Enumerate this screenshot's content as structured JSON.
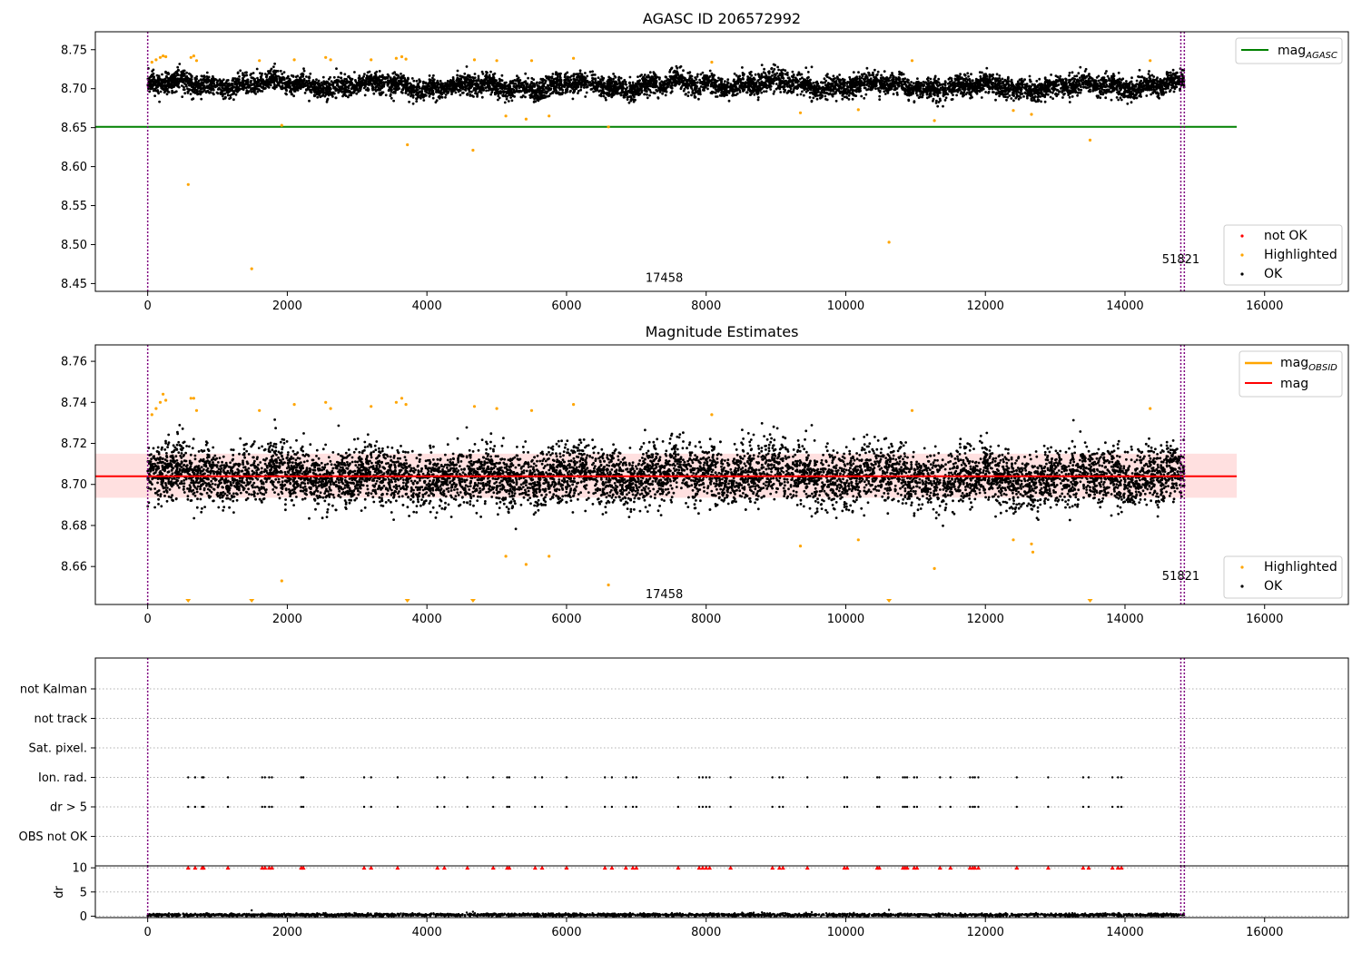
{
  "colors": {
    "ok": "#000000",
    "highlighted": "#ffa500",
    "not_ok": "#ff0000",
    "mag_agasc_line": "#008000",
    "mag_line": "#ff0000",
    "mag_band": "#ffcccc",
    "obsid_marker": "#800080",
    "grid": "#b0b0b0"
  },
  "chart_data": [
    {
      "type": "scatter",
      "title": "AGASC ID 206572992",
      "xlabel": "",
      "ylabel": "",
      "xlim": [
        -750,
        17200
      ],
      "ylim": [
        8.44,
        8.773
      ],
      "xticks": [
        0,
        2000,
        4000,
        6000,
        8000,
        10000,
        12000,
        14000,
        16000
      ],
      "xtick_labels": [
        "0",
        "2000",
        "4000",
        "6000",
        "8000",
        "10000",
        "12000",
        "14000",
        "16000"
      ],
      "yticks": [
        8.45,
        8.5,
        8.55,
        8.6,
        8.65,
        8.7,
        8.75
      ],
      "ytick_labels": [
        "8.45",
        "8.50",
        "8.55",
        "8.60",
        "8.65",
        "8.70",
        "8.75"
      ],
      "legend_position": "top-right and bottom-right",
      "legend_top": [
        {
          "label": "mag",
          "sub": "AGASC",
          "kind": "line",
          "color": "#008000"
        }
      ],
      "legend_bottom": [
        {
          "label": "not OK",
          "kind": "dot",
          "color": "#ff0000"
        },
        {
          "label": "Highlighted",
          "kind": "dot",
          "color": "#ffa500"
        },
        {
          "label": "OK",
          "kind": "dot",
          "color": "#000000"
        }
      ],
      "hline": {
        "name": "mag_AGASC",
        "y": 8.651,
        "x_range": [
          -750,
          15600
        ]
      },
      "obsid_markers": [
        0,
        14800,
        14850
      ],
      "annotations": [
        {
          "text": "17458",
          "x": 7400,
          "y": 8.452
        },
        {
          "text": "51821",
          "x": 14800,
          "y": 8.476
        }
      ],
      "ok_series": {
        "x_range": [
          0,
          14850
        ],
        "center": 8.704,
        "spread": 0.012,
        "n_points": 7000
      },
      "highlighted_outliers": [
        [
          580,
          8.577
        ],
        [
          1490,
          8.469
        ],
        [
          3720,
          8.628
        ],
        [
          4660,
          8.621
        ],
        [
          10620,
          8.503
        ],
        [
          13500,
          8.634
        ],
        [
          1920,
          8.653
        ],
        [
          5130,
          8.665
        ],
        [
          5420,
          8.661
        ],
        [
          5750,
          8.665
        ],
        [
          6600,
          8.651
        ],
        [
          9350,
          8.669
        ],
        [
          10180,
          8.673
        ],
        [
          11270,
          8.659
        ],
        [
          12400,
          8.672
        ],
        [
          12660,
          8.667
        ]
      ],
      "highlighted_high": [
        [
          60,
          8.734
        ],
        [
          120,
          8.737
        ],
        [
          180,
          8.74
        ],
        [
          220,
          8.742
        ],
        [
          260,
          8.741
        ],
        [
          620,
          8.74
        ],
        [
          660,
          8.742
        ],
        [
          700,
          8.736
        ],
        [
          1600,
          8.736
        ],
        [
          2100,
          8.737
        ],
        [
          2550,
          8.74
        ],
        [
          2620,
          8.737
        ],
        [
          3200,
          8.737
        ],
        [
          3560,
          8.739
        ],
        [
          3640,
          8.741
        ],
        [
          3700,
          8.738
        ],
        [
          4680,
          8.737
        ],
        [
          5000,
          8.736
        ],
        [
          5500,
          8.736
        ],
        [
          6100,
          8.739
        ],
        [
          8080,
          8.734
        ],
        [
          10950,
          8.736
        ],
        [
          14360,
          8.736
        ]
      ]
    },
    {
      "type": "scatter",
      "title": "Magnitude Estimates",
      "xlabel": "",
      "ylabel": "",
      "xlim": [
        -750,
        17200
      ],
      "ylim": [
        8.6415,
        8.768
      ],
      "xticks": [
        0,
        2000,
        4000,
        6000,
        8000,
        10000,
        12000,
        14000,
        16000
      ],
      "xtick_labels": [
        "0",
        "2000",
        "4000",
        "6000",
        "8000",
        "10000",
        "12000",
        "14000",
        "16000"
      ],
      "yticks": [
        8.66,
        8.68,
        8.7,
        8.72,
        8.74,
        8.76
      ],
      "ytick_labels": [
        "8.66",
        "8.68",
        "8.70",
        "8.72",
        "8.74",
        "8.76"
      ],
      "legend_position": "top-right and bottom-right",
      "legend_top": [
        {
          "label": "mag",
          "sub": "OBSID",
          "kind": "line",
          "color": "#ffa500"
        },
        {
          "label": "mag",
          "sub": "",
          "kind": "line",
          "color": "#ff0000"
        }
      ],
      "legend_bottom": [
        {
          "label": "Highlighted",
          "kind": "dot",
          "color": "#ffa500"
        },
        {
          "label": "OK",
          "kind": "dot",
          "color": "#000000"
        }
      ],
      "hline": {
        "name": "mag",
        "y": 8.704,
        "x_range": [
          -750,
          15600
        ]
      },
      "band": {
        "y_low": 8.6935,
        "y_high": 8.715,
        "x_range": [
          -750,
          15600
        ]
      },
      "obsid_markers": [
        0,
        14800,
        14850
      ],
      "annotations": [
        {
          "text": "17458",
          "x": 7400,
          "y": 8.6445
        },
        {
          "text": "51821",
          "x": 14800,
          "y": 8.6535
        }
      ],
      "ok_series": {
        "x_range": [
          0,
          14850
        ],
        "center": 8.704,
        "spread": 0.009,
        "n_points": 8000
      },
      "highlighted_outliers": [
        [
          1920,
          8.653
        ],
        [
          5130,
          8.665
        ],
        [
          5420,
          8.661
        ],
        [
          5750,
          8.665
        ],
        [
          6600,
          8.651
        ],
        [
          9350,
          8.67
        ],
        [
          10180,
          8.673
        ],
        [
          11270,
          8.659
        ],
        [
          12400,
          8.673
        ],
        [
          12660,
          8.671
        ],
        [
          12680,
          8.667
        ]
      ],
      "below_range_markers_x": [
        580,
        1490,
        3720,
        4660,
        10620,
        13500
      ],
      "highlighted_high": [
        [
          60,
          8.734
        ],
        [
          120,
          8.737
        ],
        [
          180,
          8.74
        ],
        [
          220,
          8.744
        ],
        [
          260,
          8.741
        ],
        [
          620,
          8.742
        ],
        [
          660,
          8.742
        ],
        [
          700,
          8.736
        ],
        [
          1600,
          8.736
        ],
        [
          2100,
          8.739
        ],
        [
          2550,
          8.74
        ],
        [
          2620,
          8.737
        ],
        [
          3200,
          8.738
        ],
        [
          3560,
          8.74
        ],
        [
          3640,
          8.742
        ],
        [
          3700,
          8.739
        ],
        [
          4680,
          8.738
        ],
        [
          5000,
          8.737
        ],
        [
          5500,
          8.736
        ],
        [
          6100,
          8.739
        ],
        [
          8080,
          8.734
        ],
        [
          10950,
          8.736
        ],
        [
          14360,
          8.737
        ]
      ]
    },
    {
      "type": "scatter",
      "title": "",
      "xlabel": "",
      "ylabel": "",
      "xlim": [
        -750,
        17200
      ],
      "category_labels": [
        "not Kalman",
        "not track",
        "Sat. pixel.",
        "Ion. rad.",
        "dr > 5",
        "OBS not OK"
      ],
      "flag_x": [
        580,
        680,
        780,
        800,
        1150,
        1640,
        1680,
        1740,
        1780,
        2200,
        2230,
        3100,
        3200,
        3580,
        4150,
        4250,
        4580,
        4950,
        5150,
        5180,
        5550,
        5650,
        6000,
        6550,
        6650,
        6850,
        6950,
        7000,
        7600,
        7900,
        7950,
        8000,
        8050,
        8350,
        8950,
        9050,
        9100,
        9450,
        9980,
        10020,
        10450,
        10480,
        10820,
        10850,
        10880,
        10980,
        11020,
        11350,
        11500,
        11780,
        11820,
        11850,
        11900,
        12450,
        12900,
        13400,
        13480,
        13820,
        13900,
        13950
      ],
      "flag_rows": [
        "Ion. rad.",
        "dr > 5"
      ],
      "obsid_markers": [
        0,
        14800,
        14850
      ]
    },
    {
      "type": "scatter",
      "title": "",
      "xlabel": "",
      "ylabel": "dr",
      "xlim": [
        -750,
        17200
      ],
      "ylim": [
        -0.3,
        10.4
      ],
      "xticks": [
        0,
        2000,
        4000,
        6000,
        8000,
        10000,
        12000,
        14000,
        16000
      ],
      "xtick_labels": [
        "0",
        "2000",
        "4000",
        "6000",
        "8000",
        "10000",
        "12000",
        "14000",
        "16000"
      ],
      "yticks": [
        0,
        5,
        10
      ],
      "ytick_labels": [
        "0",
        "5",
        "10"
      ],
      "clipped_marker_y": 10,
      "clipped_markers_x": [
        580,
        680,
        780,
        800,
        1150,
        1640,
        1680,
        1740,
        1780,
        2200,
        2230,
        3100,
        3200,
        3580,
        4150,
        4250,
        4580,
        4950,
        5150,
        5180,
        5550,
        5650,
        6000,
        6550,
        6650,
        6850,
        6950,
        7000,
        7600,
        7900,
        7950,
        8000,
        8050,
        8350,
        8950,
        9050,
        9100,
        9450,
        9980,
        10020,
        10450,
        10480,
        10820,
        10850,
        10880,
        10980,
        11020,
        11350,
        11500,
        11780,
        11820,
        11850,
        11900,
        12450,
        12900,
        13400,
        13480,
        13820,
        13900,
        13950
      ],
      "ok_series": {
        "x_range": [
          0,
          14850
        ],
        "center": 0.25,
        "spread": 0.15,
        "n_points": 3000
      },
      "extra_points": [
        [
          1490,
          1.2
        ],
        [
          3720,
          0.4
        ],
        [
          4660,
          0.9
        ],
        [
          10620,
          1.3
        ]
      ],
      "obsid_markers": [
        0,
        14800,
        14850
      ]
    }
  ]
}
